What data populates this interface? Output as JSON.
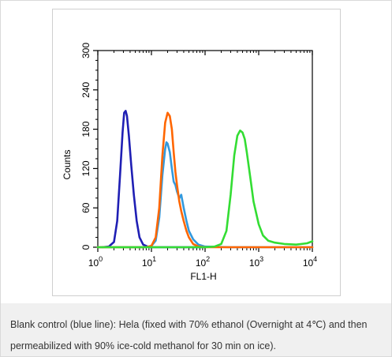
{
  "caption": "Blank control (blue line): Hela (fixed with 70% ethanol (Overnight at 4℃) and then permeabilized with 90% ice-cold methanol for 30 min on ice).",
  "chart_data": {
    "type": "line",
    "xlabel": "FL1-H",
    "ylabel": "Counts",
    "xscale": "log",
    "xlim": [
      1,
      10000
    ],
    "ylim": [
      0,
      300
    ],
    "x_ticks": [
      {
        "base": "10",
        "exp": "0",
        "value": 1
      },
      {
        "base": "10",
        "exp": "1",
        "value": 10
      },
      {
        "base": "10",
        "exp": "2",
        "value": 100
      },
      {
        "base": "10",
        "exp": "3",
        "value": 1000
      },
      {
        "base": "10",
        "exp": "4",
        "value": 10000
      }
    ],
    "y_ticks": [
      "0",
      "60",
      "120",
      "180",
      "240",
      "300"
    ],
    "grid": false,
    "legend": "none",
    "series": [
      {
        "color": "#1f1fb4",
        "x": [
          1.2,
          1.6,
          2.0,
          2.3,
          2.6,
          2.9,
          3.1,
          3.3,
          3.5,
          3.8,
          4.2,
          4.7,
          5.3,
          6.0,
          7.0,
          8.5,
          10,
          20,
          100
        ],
        "y": [
          0,
          1,
          8,
          40,
          110,
          175,
          205,
          208,
          200,
          170,
          125,
          80,
          40,
          15,
          4,
          1,
          0,
          0,
          0
        ]
      },
      {
        "color": "#3399dd",
        "x": [
          1,
          8,
          10,
          12,
          14,
          16,
          18,
          19,
          20,
          22,
          24,
          26,
          28,
          30,
          33,
          36,
          40,
          45,
          50,
          60,
          75,
          100,
          300,
          10000
        ],
        "y": [
          0,
          0,
          2,
          10,
          45,
          110,
          150,
          160,
          158,
          145,
          120,
          100,
          95,
          85,
          75,
          80,
          60,
          40,
          25,
          12,
          4,
          1,
          0,
          0
        ]
      },
      {
        "color": "#ff6600",
        "x": [
          1,
          8,
          10,
          12,
          14,
          16,
          18,
          20,
          22,
          24,
          26,
          28,
          30,
          33,
          36,
          40,
          45,
          50,
          60,
          75,
          100,
          10000
        ],
        "y": [
          0,
          0,
          2,
          15,
          60,
          140,
          190,
          205,
          200,
          180,
          145,
          115,
          95,
          70,
          55,
          40,
          25,
          15,
          5,
          1,
          0,
          0
        ]
      },
      {
        "color": "#33dd33",
        "x": [
          1,
          100,
          150,
          200,
          250,
          300,
          350,
          400,
          450,
          500,
          550,
          600,
          700,
          800,
          1000,
          1200,
          1500,
          2000,
          3000,
          5000,
          8000,
          10000
        ],
        "y": [
          0,
          0,
          1,
          5,
          25,
          80,
          140,
          170,
          178,
          175,
          165,
          145,
          105,
          70,
          35,
          18,
          10,
          7,
          5,
          4,
          6,
          9
        ]
      }
    ]
  }
}
